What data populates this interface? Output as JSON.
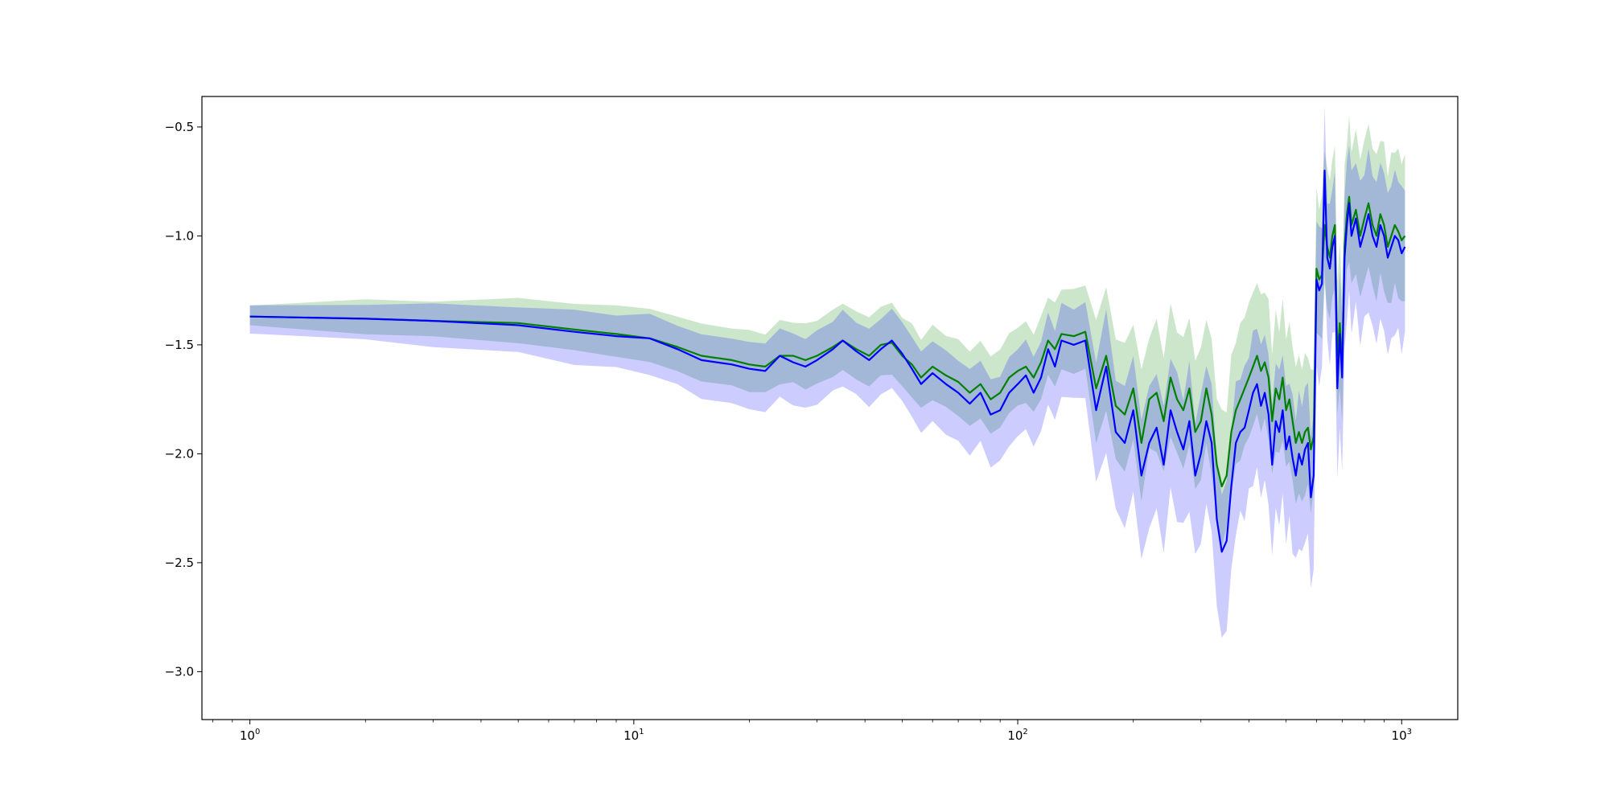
{
  "chart_data": {
    "type": "line",
    "title": "",
    "xlabel": "",
    "ylabel": "",
    "xscale": "log",
    "xlim": [
      0.75,
      1400
    ],
    "ylim": [
      -3.22,
      -0.36
    ],
    "grid": false,
    "legend": "none",
    "x_ticks": [
      {
        "value": 1,
        "base": "10",
        "exp": "0"
      },
      {
        "value": 10,
        "base": "10",
        "exp": "1"
      },
      {
        "value": 100,
        "base": "10",
        "exp": "2"
      },
      {
        "value": 1000,
        "base": "10",
        "exp": "3"
      }
    ],
    "y_ticks": [
      {
        "value": -0.5,
        "label": "−0.5"
      },
      {
        "value": -1.0,
        "label": "−1.0"
      },
      {
        "value": -1.5,
        "label": "−1.5"
      },
      {
        "value": -2.0,
        "label": "−2.0"
      },
      {
        "value": -2.5,
        "label": "−2.5"
      },
      {
        "value": -3.0,
        "label": "−3.0"
      }
    ],
    "x": [
      1,
      2,
      3,
      5,
      7,
      9,
      11,
      13,
      15,
      18,
      20,
      22,
      24,
      26,
      28,
      30,
      33,
      35,
      38,
      41,
      44,
      47,
      50,
      53,
      56,
      60,
      65,
      70,
      75,
      80,
      85,
      90,
      95,
      100,
      105,
      110,
      115,
      120,
      125,
      130,
      140,
      150,
      160,
      170,
      180,
      190,
      200,
      210,
      220,
      230,
      240,
      250,
      260,
      270,
      280,
      290,
      300,
      310,
      320,
      330,
      340,
      350,
      360,
      370,
      380,
      390,
      400,
      410,
      420,
      430,
      440,
      450,
      460,
      470,
      480,
      490,
      500,
      510,
      520,
      530,
      540,
      550,
      560,
      570,
      580,
      590,
      600,
      610,
      620,
      630,
      640,
      650,
      660,
      670,
      680,
      690,
      700,
      710,
      720,
      730,
      740,
      760,
      780,
      800,
      820,
      840,
      860,
      880,
      900,
      920,
      940,
      960,
      980,
      1000,
      1020
    ],
    "series": [
      {
        "color": "#008000",
        "fill": "#008000",
        "values": [
          -1.37,
          -1.38,
          -1.39,
          -1.4,
          -1.43,
          -1.45,
          -1.47,
          -1.51,
          -1.55,
          -1.57,
          -1.59,
          -1.6,
          -1.55,
          -1.55,
          -1.57,
          -1.55,
          -1.51,
          -1.48,
          -1.52,
          -1.55,
          -1.5,
          -1.49,
          -1.55,
          -1.59,
          -1.65,
          -1.6,
          -1.64,
          -1.67,
          -1.72,
          -1.68,
          -1.75,
          -1.72,
          -1.65,
          -1.62,
          -1.6,
          -1.65,
          -1.58,
          -1.48,
          -1.52,
          -1.45,
          -1.46,
          -1.44,
          -1.7,
          -1.55,
          -1.78,
          -1.82,
          -1.7,
          -1.95,
          -1.75,
          -1.72,
          -1.85,
          -1.65,
          -1.75,
          -1.8,
          -1.7,
          -1.9,
          -1.85,
          -1.7,
          -1.82,
          -2.05,
          -2.15,
          -2.1,
          -1.9,
          -1.8,
          -1.75,
          -1.7,
          -1.65,
          -1.6,
          -1.55,
          -1.62,
          -1.58,
          -1.65,
          -1.85,
          -1.7,
          -1.75,
          -1.65,
          -1.8,
          -1.75,
          -1.85,
          -1.95,
          -1.9,
          -1.95,
          -1.9,
          -1.88,
          -1.98,
          -1.92,
          -1.15,
          -1.2,
          -1.18,
          -0.95,
          -1.05,
          -1.1,
          -1.0,
          -0.95,
          -1.55,
          -1.4,
          -1.6,
          -1.05,
          -0.9,
          -0.82,
          -0.95,
          -0.88,
          -1.0,
          -0.92,
          -0.85,
          -0.95,
          -1.0,
          -0.9,
          -0.95,
          -1.05,
          -1.0,
          -0.95,
          -0.98,
          -1.02,
          -1.0
        ]
      },
      {
        "color": "#0000ff",
        "fill": "#0000ff",
        "values": [
          -1.37,
          -1.38,
          -1.39,
          -1.41,
          -1.44,
          -1.46,
          -1.47,
          -1.52,
          -1.57,
          -1.59,
          -1.61,
          -1.62,
          -1.55,
          -1.58,
          -1.6,
          -1.57,
          -1.52,
          -1.48,
          -1.53,
          -1.57,
          -1.52,
          -1.48,
          -1.54,
          -1.61,
          -1.68,
          -1.63,
          -1.68,
          -1.72,
          -1.77,
          -1.72,
          -1.82,
          -1.8,
          -1.72,
          -1.68,
          -1.64,
          -1.72,
          -1.65,
          -1.52,
          -1.6,
          -1.48,
          -1.5,
          -1.48,
          -1.8,
          -1.6,
          -1.9,
          -1.95,
          -1.8,
          -2.1,
          -1.95,
          -1.88,
          -2.05,
          -1.8,
          -1.9,
          -1.98,
          -1.85,
          -2.1,
          -2.0,
          -1.85,
          -1.95,
          -2.3,
          -2.45,
          -2.4,
          -2.15,
          -1.95,
          -1.9,
          -1.88,
          -1.8,
          -1.72,
          -1.68,
          -1.78,
          -1.72,
          -1.82,
          -2.05,
          -1.85,
          -1.9,
          -1.8,
          -1.98,
          -1.92,
          -2.02,
          -2.1,
          -2.0,
          -2.05,
          -1.98,
          -1.95,
          -2.2,
          -2.1,
          -1.2,
          -1.25,
          -1.22,
          -0.7,
          -1.1,
          -1.15,
          -1.05,
          -1.0,
          -1.7,
          -1.45,
          -1.65,
          -1.1,
          -0.95,
          -0.85,
          -1.0,
          -0.92,
          -1.05,
          -0.98,
          -0.9,
          -1.0,
          -1.05,
          -0.95,
          -1.0,
          -1.1,
          -1.05,
          -1.0,
          -1.02,
          -1.08,
          -1.05
        ]
      }
    ]
  }
}
